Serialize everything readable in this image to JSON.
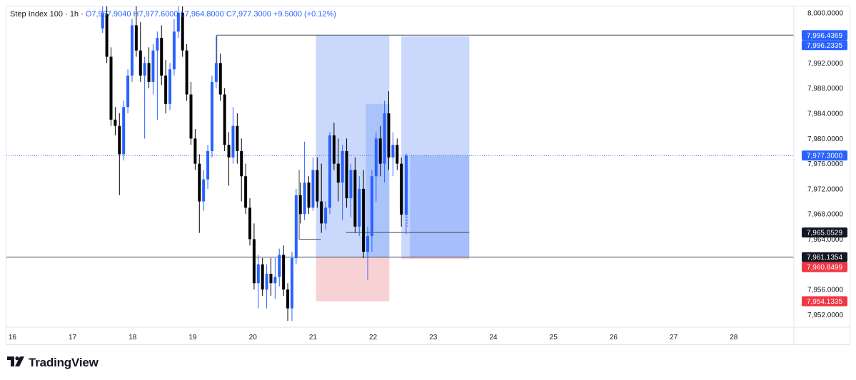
{
  "header": {
    "symbol": "Step Index 100",
    "interval": "1h",
    "open": "O7,967.9040",
    "high": "H7,977.6000",
    "low": "L7,964.8000",
    "close": "C7,977.3000",
    "change": "+9.5000 (+0.12%)"
  },
  "brand": {
    "name": "TradingView",
    "logo_icon": "tradingview-logo-icon"
  },
  "colors": {
    "candle_up": "#2962ff",
    "candle_down": "#000000",
    "target_zone": "#a8c0f8",
    "stop_zone": "#f7c9cc",
    "current_price_line": "#2962ff",
    "tag_blue": "#2962ff",
    "tag_black": "#131722",
    "tag_red": "#f23645"
  },
  "chart_data": {
    "type": "candlestick",
    "title": "Step Index 100 · 1h",
    "ylim": [
      7950.0,
      8001.0
    ],
    "xlim": [
      15.9,
      29.0
    ],
    "x_ticks": [
      "16",
      "17",
      "18",
      "19",
      "20",
      "21",
      "22",
      "23",
      "24",
      "25",
      "26",
      "27",
      "28"
    ],
    "x_tick_values": [
      16,
      17,
      18,
      19,
      20,
      21,
      22,
      23,
      24,
      25,
      26,
      27,
      28
    ],
    "y_ticks": [
      "8,000.0000",
      "7,992.0000",
      "7,988.0000",
      "7,984.0000",
      "7,980.0000",
      "7,976.0000",
      "7,972.0000",
      "7,968.0000",
      "7,964.0000",
      "7,956.0000",
      "7,952.0000"
    ],
    "y_tick_values": [
      8000,
      7992,
      7988,
      7984,
      7980,
      7976,
      7972,
      7968,
      7964,
      7956,
      7952
    ],
    "price_tags": [
      {
        "label": "7,996.4369",
        "value": 7996.4369,
        "style": "blue"
      },
      {
        "label": "7,996.2335",
        "value": 7996.2335,
        "style": "blue"
      },
      {
        "label": "7,977.3000",
        "value": 7977.3,
        "style": "blue-outline"
      },
      {
        "label": "7,965.0529",
        "value": 7965.0529,
        "style": "black"
      },
      {
        "label": "7,961.1354",
        "value": 7961.1354,
        "style": "black"
      },
      {
        "label": "7,960.8499",
        "value": 7960.8499,
        "style": "red"
      },
      {
        "label": "7,954.1335",
        "value": 7954.1335,
        "style": "red"
      }
    ],
    "horizontal_lines": [
      {
        "value": 7996.4369,
        "x_start": 19.4,
        "style": "solid"
      },
      {
        "value": 7961.1354,
        "x_start": 15.9,
        "style": "solid"
      },
      {
        "value": 7977.3,
        "x_start": 15.9,
        "style": "dotted"
      },
      {
        "value": 7965.0529,
        "x_start": 21.55,
        "x_end": 23.6,
        "style": "solid"
      }
    ],
    "positions": [
      {
        "name": "long-position-1",
        "x_start": 21.05,
        "x_end": 22.27,
        "entry": 7961.1354,
        "target": 7996.4369,
        "stop": 7954.1335
      },
      {
        "name": "long-position-2",
        "x_start": 22.47,
        "x_end": 23.6,
        "entry": 7961.1354,
        "target": 7996.2335,
        "stop": 7960.8499,
        "filled_to": 7977.3
      }
    ],
    "current_price": 7977.3,
    "candles": [
      {
        "t": 17.5,
        "o": 7997.5,
        "h": 8001.0,
        "l": 7996.8,
        "c": 7999.8
      },
      {
        "t": 17.57,
        "o": 7999.8,
        "h": 8001.0,
        "l": 7992.0,
        "c": 7993.0
      },
      {
        "t": 17.64,
        "o": 7993.0,
        "h": 7994.5,
        "l": 7982.0,
        "c": 7983.0
      },
      {
        "t": 17.71,
        "o": 7983.0,
        "h": 7985.0,
        "l": 7980.5,
        "c": 7982.0
      },
      {
        "t": 17.78,
        "o": 7982.0,
        "h": 7984.0,
        "l": 7971.0,
        "c": 7977.5
      },
      {
        "t": 17.85,
        "o": 7977.5,
        "h": 7986.0,
        "l": 7976.5,
        "c": 7985.0
      },
      {
        "t": 17.92,
        "o": 7985.0,
        "h": 7991.0,
        "l": 7984.0,
        "c": 7990.0
      },
      {
        "t": 17.99,
        "o": 7990.0,
        "h": 7999.0,
        "l": 7989.0,
        "c": 7998.0
      },
      {
        "t": 18.06,
        "o": 7998.0,
        "h": 8001.0,
        "l": 7993.0,
        "c": 7994.0
      },
      {
        "t": 18.13,
        "o": 7994.0,
        "h": 7998.5,
        "l": 7989.0,
        "c": 7990.0
      },
      {
        "t": 18.2,
        "o": 7990.0,
        "h": 7993.0,
        "l": 7980.0,
        "c": 7992.0
      },
      {
        "t": 18.27,
        "o": 7992.0,
        "h": 7994.5,
        "l": 7988.0,
        "c": 7989.0
      },
      {
        "t": 18.34,
        "o": 7989.0,
        "h": 7995.0,
        "l": 7987.0,
        "c": 7994.0
      },
      {
        "t": 18.41,
        "o": 7994.0,
        "h": 7997.0,
        "l": 7983.0,
        "c": 7996.0
      },
      {
        "t": 18.48,
        "o": 7996.0,
        "h": 7998.0,
        "l": 7988.5,
        "c": 7990.0
      },
      {
        "t": 18.55,
        "o": 7990.0,
        "h": 7992.5,
        "l": 7984.0,
        "c": 7985.5
      },
      {
        "t": 18.62,
        "o": 7985.5,
        "h": 7992.0,
        "l": 7984.5,
        "c": 7991.0
      },
      {
        "t": 18.69,
        "o": 7991.0,
        "h": 7999.0,
        "l": 7990.0,
        "c": 7997.0
      },
      {
        "t": 18.76,
        "o": 7997.0,
        "h": 8001.0,
        "l": 7996.0,
        "c": 8000.0
      },
      {
        "t": 18.83,
        "o": 8000.0,
        "h": 8001.0,
        "l": 7993.0,
        "c": 7994.0
      },
      {
        "t": 18.9,
        "o": 7994.0,
        "h": 7995.0,
        "l": 7986.0,
        "c": 7987.0
      },
      {
        "t": 18.97,
        "o": 7987.0,
        "h": 7989.0,
        "l": 7979.0,
        "c": 7980.0
      },
      {
        "t": 19.04,
        "o": 7980.0,
        "h": 7981.5,
        "l": 7975.0,
        "c": 7976.0
      },
      {
        "t": 19.11,
        "o": 7976.0,
        "h": 7977.5,
        "l": 7965.0,
        "c": 7970.0
      },
      {
        "t": 19.18,
        "o": 7970.0,
        "h": 7975.0,
        "l": 7968.5,
        "c": 7973.5
      },
      {
        "t": 19.25,
        "o": 7973.5,
        "h": 7979.0,
        "l": 7972.0,
        "c": 7978.0
      },
      {
        "t": 19.32,
        "o": 7978.0,
        "h": 7990.0,
        "l": 7977.0,
        "c": 7989.0
      },
      {
        "t": 19.39,
        "o": 7989.0,
        "h": 7996.4,
        "l": 7988.0,
        "c": 7992.0
      },
      {
        "t": 19.46,
        "o": 7992.0,
        "h": 7993.5,
        "l": 7986.0,
        "c": 7987.0
      },
      {
        "t": 19.53,
        "o": 7987.0,
        "h": 7988.0,
        "l": 7978.0,
        "c": 7979.0
      },
      {
        "t": 19.6,
        "o": 7979.0,
        "h": 7981.0,
        "l": 7972.5,
        "c": 7977.0
      },
      {
        "t": 19.67,
        "o": 7977.0,
        "h": 7985.0,
        "l": 7976.0,
        "c": 7982.0
      },
      {
        "t": 19.74,
        "o": 7982.0,
        "h": 7984.0,
        "l": 7976.0,
        "c": 7978.0
      },
      {
        "t": 19.81,
        "o": 7978.0,
        "h": 7980.0,
        "l": 7970.0,
        "c": 7974.0
      },
      {
        "t": 19.88,
        "o": 7974.0,
        "h": 7976.0,
        "l": 7968.0,
        "c": 7969.0
      },
      {
        "t": 19.95,
        "o": 7969.0,
        "h": 7970.5,
        "l": 7963.0,
        "c": 7964.0
      },
      {
        "t": 20.02,
        "o": 7964.0,
        "h": 7966.5,
        "l": 7956.0,
        "c": 7957.0
      },
      {
        "t": 20.09,
        "o": 7957.0,
        "h": 7961.5,
        "l": 7953.0,
        "c": 7960.0
      },
      {
        "t": 20.16,
        "o": 7960.0,
        "h": 7961.0,
        "l": 7955.0,
        "c": 7956.0
      },
      {
        "t": 20.23,
        "o": 7956.0,
        "h": 7960.0,
        "l": 7953.0,
        "c": 7958.5
      },
      {
        "t": 20.3,
        "o": 7958.5,
        "h": 7961.0,
        "l": 7955.0,
        "c": 7957.0
      },
      {
        "t": 20.37,
        "o": 7957.0,
        "h": 7961.0,
        "l": 7954.5,
        "c": 7958.0
      },
      {
        "t": 20.44,
        "o": 7958.0,
        "h": 7962.5,
        "l": 7956.5,
        "c": 7961.5
      },
      {
        "t": 20.51,
        "o": 7961.5,
        "h": 7963.0,
        "l": 7955.0,
        "c": 7956.0
      },
      {
        "t": 20.58,
        "o": 7956.0,
        "h": 7957.0,
        "l": 7951.0,
        "c": 7953.0
      },
      {
        "t": 20.65,
        "o": 7953.0,
        "h": 7962.0,
        "l": 7951.0,
        "c": 7961.0
      },
      {
        "t": 20.72,
        "o": 7961.0,
        "h": 7972.0,
        "l": 7960.0,
        "c": 7971.0
      },
      {
        "t": 20.79,
        "o": 7971.0,
        "h": 7973.0,
        "l": 7966.5,
        "c": 7968.0
      },
      {
        "t": 20.86,
        "o": 7968.0,
        "h": 7979.5,
        "l": 7967.0,
        "c": 7973.0
      },
      {
        "t": 20.93,
        "o": 7973.0,
        "h": 7974.0,
        "l": 7968.0,
        "c": 7969.0
      },
      {
        "t": 21.0,
        "o": 7969.0,
        "h": 7977.0,
        "l": 7968.5,
        "c": 7975.0
      },
      {
        "t": 21.07,
        "o": 7975.0,
        "h": 7977.0,
        "l": 7969.0,
        "c": 7970.0
      },
      {
        "t": 21.14,
        "o": 7970.0,
        "h": 7976.0,
        "l": 7965.0,
        "c": 7966.5
      },
      {
        "t": 21.21,
        "o": 7966.5,
        "h": 7970.0,
        "l": 7965.5,
        "c": 7969.0
      },
      {
        "t": 21.28,
        "o": 7969.0,
        "h": 7981.0,
        "l": 7968.0,
        "c": 7980.5
      },
      {
        "t": 21.35,
        "o": 7980.5,
        "h": 7982.5,
        "l": 7975.0,
        "c": 7976.0
      },
      {
        "t": 21.42,
        "o": 7976.0,
        "h": 7980.0,
        "l": 7970.0,
        "c": 7973.0
      },
      {
        "t": 21.49,
        "o": 7973.0,
        "h": 7979.0,
        "l": 7967.0,
        "c": 7978.0
      },
      {
        "t": 21.56,
        "o": 7978.0,
        "h": 7980.0,
        "l": 7969.0,
        "c": 7970.5
      },
      {
        "t": 21.63,
        "o": 7970.5,
        "h": 7976.0,
        "l": 7967.5,
        "c": 7975.0
      },
      {
        "t": 21.7,
        "o": 7975.0,
        "h": 7977.0,
        "l": 7965.0,
        "c": 7966.0
      },
      {
        "t": 21.77,
        "o": 7966.0,
        "h": 7974.0,
        "l": 7964.5,
        "c": 7972.0
      },
      {
        "t": 21.84,
        "o": 7972.0,
        "h": 7975.0,
        "l": 7961.0,
        "c": 7962.0
      },
      {
        "t": 21.91,
        "o": 7962.0,
        "h": 7966.0,
        "l": 7957.5,
        "c": 7964.5
      },
      {
        "t": 21.98,
        "o": 7964.5,
        "h": 7975.0,
        "l": 7962.0,
        "c": 7974.0
      },
      {
        "t": 22.05,
        "o": 7974.0,
        "h": 7981.0,
        "l": 7970.0,
        "c": 7980.0
      },
      {
        "t": 22.12,
        "o": 7980.0,
        "h": 7982.0,
        "l": 7974.0,
        "c": 7976.0
      },
      {
        "t": 22.19,
        "o": 7976.0,
        "h": 7986.0,
        "l": 7973.0,
        "c": 7984.0
      },
      {
        "t": 22.26,
        "o": 7984.0,
        "h": 7987.5,
        "l": 7975.0,
        "c": 7977.0
      },
      {
        "t": 22.33,
        "o": 7977.0,
        "h": 7981.0,
        "l": 7974.0,
        "c": 7979.0
      },
      {
        "t": 22.4,
        "o": 7979.0,
        "h": 7980.0,
        "l": 7975.0,
        "c": 7976.0
      },
      {
        "t": 22.47,
        "o": 7976.0,
        "h": 7977.0,
        "l": 7966.0,
        "c": 7967.9
      },
      {
        "t": 22.55,
        "o": 7967.9,
        "h": 7977.6,
        "l": 7964.8,
        "c": 7977.3
      }
    ]
  }
}
